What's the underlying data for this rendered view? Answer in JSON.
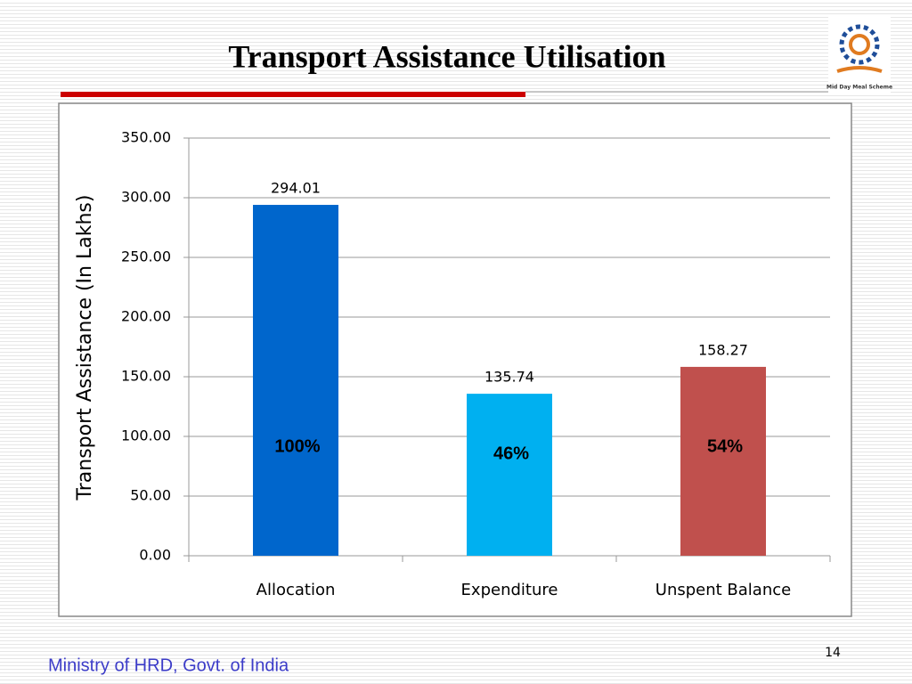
{
  "chart_data": {
    "type": "bar",
    "title": "Transport Assistance Utilisation",
    "ylabel": "Transport Assistance (In Lakhs)",
    "categories": [
      "Allocation",
      "Expenditure",
      "Unspent Balance"
    ],
    "values": [
      294.01,
      135.74,
      158.27
    ],
    "colors": [
      "#0066cc",
      "#00b0f0",
      "#c0504d"
    ],
    "annotations": [
      "100%",
      "46%",
      "54%"
    ],
    "ylim": [
      0,
      350
    ],
    "yticks": [
      {
        "value": 0,
        "label": "0.00"
      },
      {
        "value": 50,
        "label": "50.00"
      },
      {
        "value": 100,
        "label": "100.00"
      },
      {
        "value": 150,
        "label": "150.00"
      },
      {
        "value": 200,
        "label": "200.00"
      },
      {
        "value": 250,
        "label": "250.00"
      },
      {
        "value": 300,
        "label": "300.00"
      },
      {
        "value": 350,
        "label": "350.00"
      }
    ],
    "grid": true
  },
  "footer": {
    "organization": "Ministry of HRD, Govt. of India",
    "page_number": "14",
    "logo_caption": "Mid Day Meal Scheme"
  }
}
